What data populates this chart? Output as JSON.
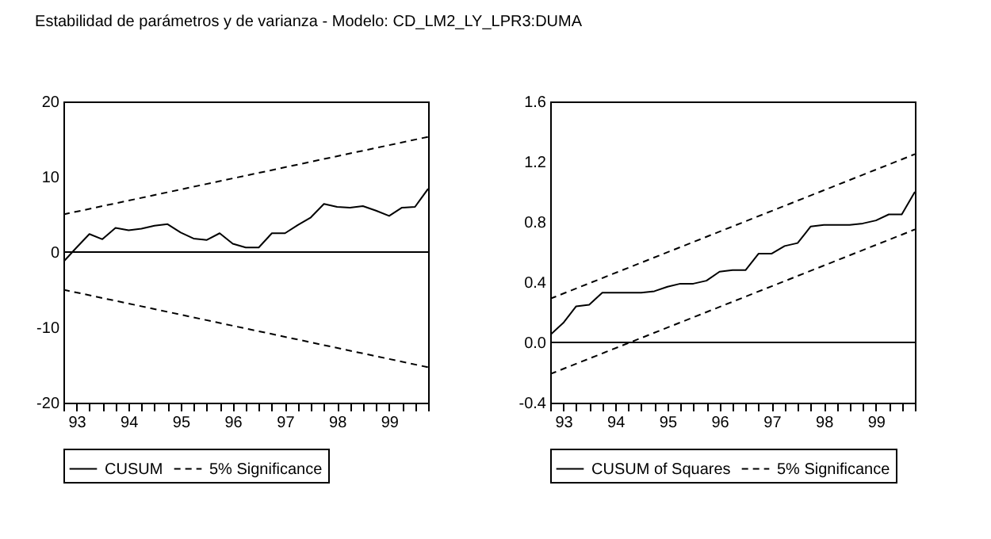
{
  "chart_data": [
    {
      "type": "line",
      "title": "Estabilidad de parámetros y de varianza  - Modelo: CD_LM2_LY_LPR3:DUMA",
      "x": [
        "1992-10",
        "1993-01",
        "1993-04",
        "1993-07",
        "1993-10",
        "1994-01",
        "1994-04",
        "1994-07",
        "1994-10",
        "1995-01",
        "1995-04",
        "1995-07",
        "1995-10",
        "1996-01",
        "1996-04",
        "1996-07",
        "1996-10",
        "1997-01",
        "1997-04",
        "1997-07",
        "1997-10",
        "1998-01",
        "1998-04",
        "1998-07",
        "1998-10",
        "1999-01",
        "1999-04",
        "1999-07",
        "1999-10"
      ],
      "xlim": [
        "1992-10",
        "1999-10"
      ],
      "xticks": [
        {
          "value": "1992-10",
          "label": null
        },
        {
          "value": "1993-01",
          "label": "93"
        },
        {
          "value": "1993-04",
          "label": null
        },
        {
          "value": "1993-07",
          "label": null
        },
        {
          "value": "1993-10",
          "label": null
        },
        {
          "value": "1994-01",
          "label": "94"
        },
        {
          "value": "1994-04",
          "label": null
        },
        {
          "value": "1994-07",
          "label": null
        },
        {
          "value": "1994-10",
          "label": null
        },
        {
          "value": "1995-01",
          "label": "95"
        },
        {
          "value": "1995-04",
          "label": null
        },
        {
          "value": "1995-07",
          "label": null
        },
        {
          "value": "1995-10",
          "label": null
        },
        {
          "value": "1996-01",
          "label": "96"
        },
        {
          "value": "1996-04",
          "label": null
        },
        {
          "value": "1996-07",
          "label": null
        },
        {
          "value": "1996-10",
          "label": null
        },
        {
          "value": "1997-01",
          "label": "97"
        },
        {
          "value": "1997-04",
          "label": null
        },
        {
          "value": "1997-07",
          "label": null
        },
        {
          "value": "1997-10",
          "label": null
        },
        {
          "value": "1998-01",
          "label": "98"
        },
        {
          "value": "1998-04",
          "label": null
        },
        {
          "value": "1998-07",
          "label": null
        },
        {
          "value": "1998-10",
          "label": null
        },
        {
          "value": "1999-01",
          "label": "99"
        },
        {
          "value": "1999-04",
          "label": null
        },
        {
          "value": "1999-07",
          "label": null
        },
        {
          "value": "1999-10",
          "label": null
        }
      ],
      "ylim": [
        -20,
        20
      ],
      "yticks": [
        -20,
        -10,
        0,
        10,
        20
      ],
      "grid": false,
      "legend": "bottom",
      "ref_lines": [
        {
          "axis": "y",
          "value": 0,
          "color": "#000000"
        }
      ],
      "series": [
        {
          "name": "CUSUM",
          "color": "#000000",
          "line_style": "solid",
          "values": [
            -1.3,
            0.6,
            2.4,
            1.7,
            3.2,
            2.9,
            3.1,
            3.5,
            3.7,
            2.6,
            1.8,
            1.6,
            2.5,
            1.1,
            0.6,
            0.6,
            2.5,
            2.5,
            3.6,
            4.6,
            6.4,
            6.0,
            5.9,
            6.1,
            5.5,
            4.8,
            5.9,
            6.0,
            8.4
          ]
        },
        {
          "name": "5% Significance",
          "color": "#000000",
          "line_style": "dashed",
          "x": [
            "1992-10",
            "1999-10"
          ],
          "values": [
            5.0,
            15.3
          ]
        },
        {
          "color": "#000000",
          "line_style": "dashed",
          "x": [
            "1992-10",
            "1999-10"
          ],
          "values": [
            -5.0,
            -15.3
          ]
        }
      ]
    },
    {
      "type": "line",
      "x": [
        "1992-10",
        "1993-01",
        "1993-04",
        "1993-07",
        "1993-10",
        "1994-01",
        "1994-04",
        "1994-07",
        "1994-10",
        "1995-01",
        "1995-04",
        "1995-07",
        "1995-10",
        "1996-01",
        "1996-04",
        "1996-07",
        "1996-10",
        "1997-01",
        "1997-04",
        "1997-07",
        "1997-10",
        "1998-01",
        "1998-04",
        "1998-07",
        "1998-10",
        "1999-01",
        "1999-04",
        "1999-07",
        "1999-10"
      ],
      "xlim": [
        "1992-10",
        "1999-10"
      ],
      "xticks": [
        {
          "value": "1992-10",
          "label": null
        },
        {
          "value": "1993-01",
          "label": "93"
        },
        {
          "value": "1993-04",
          "label": null
        },
        {
          "value": "1993-07",
          "label": null
        },
        {
          "value": "1993-10",
          "label": null
        },
        {
          "value": "1994-01",
          "label": "94"
        },
        {
          "value": "1994-04",
          "label": null
        },
        {
          "value": "1994-07",
          "label": null
        },
        {
          "value": "1994-10",
          "label": null
        },
        {
          "value": "1995-01",
          "label": "95"
        },
        {
          "value": "1995-04",
          "label": null
        },
        {
          "value": "1995-07",
          "label": null
        },
        {
          "value": "1995-10",
          "label": null
        },
        {
          "value": "1996-01",
          "label": "96"
        },
        {
          "value": "1996-04",
          "label": null
        },
        {
          "value": "1996-07",
          "label": null
        },
        {
          "value": "1996-10",
          "label": null
        },
        {
          "value": "1997-01",
          "label": "97"
        },
        {
          "value": "1997-04",
          "label": null
        },
        {
          "value": "1997-07",
          "label": null
        },
        {
          "value": "1997-10",
          "label": null
        },
        {
          "value": "1998-01",
          "label": "98"
        },
        {
          "value": "1998-04",
          "label": null
        },
        {
          "value": "1998-07",
          "label": null
        },
        {
          "value": "1998-10",
          "label": null
        },
        {
          "value": "1999-01",
          "label": "99"
        },
        {
          "value": "1999-04",
          "label": null
        },
        {
          "value": "1999-07",
          "label": null
        },
        {
          "value": "1999-10",
          "label": null
        }
      ],
      "ylim": [
        -0.4,
        1.6
      ],
      "yticks": [
        -0.4,
        {
          "value": 0,
          "label": "0.0"
        },
        0.4,
        0.8,
        1.2,
        1.6
      ],
      "grid": false,
      "legend": "bottom",
      "ref_lines": [
        {
          "axis": "y",
          "value": 0,
          "color": "#000000"
        }
      ],
      "series": [
        {
          "name": "CUSUM of Squares",
          "color": "#000000",
          "line_style": "solid",
          "values": [
            0.05,
            0.13,
            0.24,
            0.25,
            0.33,
            0.33,
            0.33,
            0.33,
            0.34,
            0.37,
            0.39,
            0.39,
            0.41,
            0.47,
            0.48,
            0.48,
            0.59,
            0.59,
            0.64,
            0.66,
            0.77,
            0.78,
            0.78,
            0.78,
            0.79,
            0.81,
            0.85,
            0.85,
            1.0
          ]
        },
        {
          "name": "5% Significance",
          "color": "#000000",
          "line_style": "dashed",
          "x": [
            "1992-10",
            "1999-10"
          ],
          "values": [
            0.29,
            1.25
          ]
        },
        {
          "color": "#000000",
          "line_style": "dashed",
          "x": [
            "1992-10",
            "1999-10"
          ],
          "values": [
            -0.21,
            0.75
          ]
        }
      ]
    }
  ]
}
